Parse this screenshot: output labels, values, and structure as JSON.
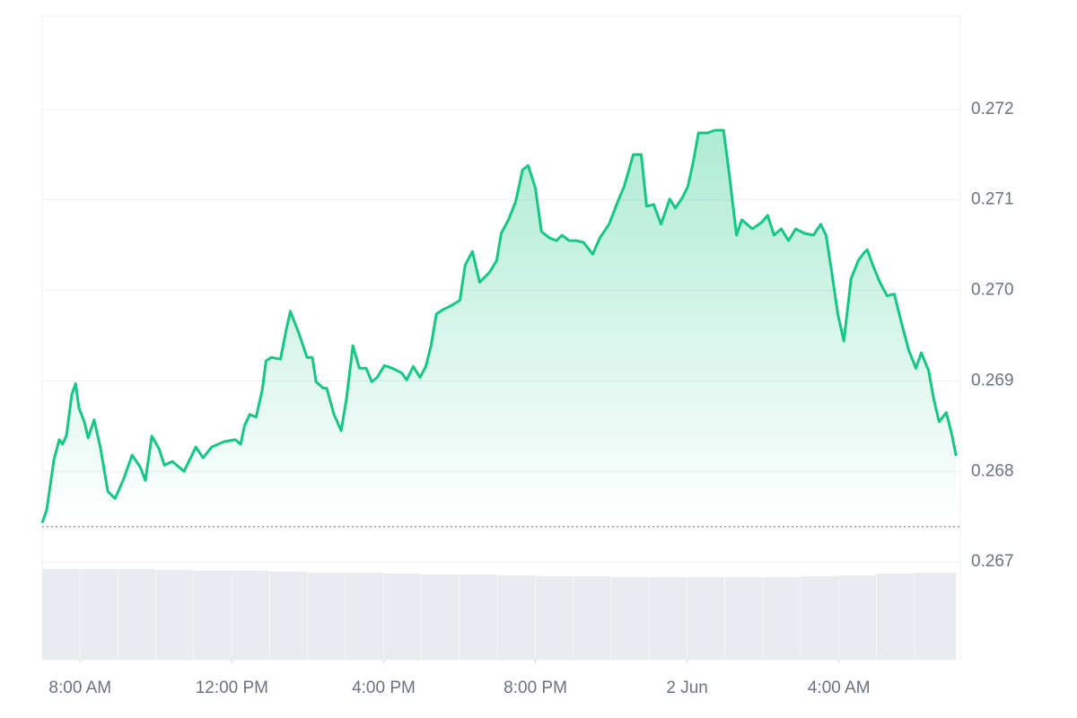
{
  "chart_data": {
    "type": "area",
    "x": [
      7.0,
      7.12,
      7.31,
      7.45,
      7.54,
      7.64,
      7.78,
      7.88,
      7.97,
      8.11,
      8.21,
      8.37,
      8.54,
      8.73,
      8.92,
      9.15,
      9.37,
      9.58,
      9.72,
      9.89,
      10.08,
      10.22,
      10.43,
      10.74,
      11.05,
      11.24,
      11.47,
      11.8,
      12.09,
      12.23,
      12.33,
      12.47,
      12.64,
      12.8,
      12.9,
      13.04,
      13.28,
      13.42,
      13.54,
      13.77,
      13.98,
      14.12,
      14.22,
      14.41,
      14.5,
      14.69,
      14.88,
      15.02,
      15.19,
      15.36,
      15.54,
      15.69,
      15.83,
      16.02,
      16.23,
      16.47,
      16.61,
      16.78,
      16.96,
      17.11,
      17.25,
      17.39,
      17.58,
      17.82,
      18.01,
      18.15,
      18.34,
      18.53,
      18.79,
      18.98,
      19.1,
      19.29,
      19.48,
      19.66,
      19.81,
      20.0,
      20.16,
      20.37,
      20.56,
      20.7,
      20.89,
      21.08,
      21.27,
      21.51,
      21.7,
      21.94,
      22.17,
      22.34,
      22.58,
      22.79,
      22.93,
      23.12,
      23.31,
      23.54,
      23.69,
      23.88,
      24.02,
      24.16,
      24.3,
      24.54,
      24.73,
      24.96,
      25.11,
      25.3,
      25.44,
      25.72,
      25.96,
      26.12,
      26.29,
      26.48,
      26.67,
      26.86,
      27.09,
      27.33,
      27.52,
      27.66,
      27.8,
      27.97,
      28.13,
      28.32,
      28.51,
      28.65,
      28.75,
      28.89,
      29.08,
      29.27,
      29.46,
      29.65,
      29.84,
      30.03,
      30.17,
      30.36,
      30.5,
      30.64,
      30.83,
      30.98,
      31.09
    ],
    "series": [
      {
        "color": "#16c784",
        "values": [
          0.26743,
          0.26758,
          0.26813,
          0.26835,
          0.2683,
          0.2684,
          0.26885,
          0.26897,
          0.2687,
          0.26855,
          0.26837,
          0.26857,
          0.26825,
          0.26778,
          0.2677,
          0.26792,
          0.26818,
          0.26805,
          0.2679,
          0.26839,
          0.26825,
          0.26807,
          0.26811,
          0.268,
          0.26827,
          0.26815,
          0.26827,
          0.26833,
          0.26835,
          0.2683,
          0.2685,
          0.26863,
          0.2686,
          0.2689,
          0.26922,
          0.26926,
          0.26924,
          0.26954,
          0.26977,
          0.26952,
          0.26926,
          0.26926,
          0.26899,
          0.26892,
          0.26892,
          0.26863,
          0.26845,
          0.2688,
          0.26939,
          0.26914,
          0.26914,
          0.26899,
          0.26904,
          0.26917,
          0.26914,
          0.26909,
          0.26901,
          0.26916,
          0.26904,
          0.26916,
          0.26939,
          0.26974,
          0.26979,
          0.26984,
          0.26989,
          0.27028,
          0.27043,
          0.27009,
          0.2702,
          0.27033,
          0.27063,
          0.27078,
          0.27098,
          0.27133,
          0.27138,
          0.27113,
          0.27065,
          0.27058,
          0.27055,
          0.27061,
          0.27055,
          0.27055,
          0.27053,
          0.2704,
          0.27058,
          0.27073,
          0.27098,
          0.27115,
          0.2715,
          0.2715,
          0.27093,
          0.27095,
          0.27073,
          0.27101,
          0.27091,
          0.27103,
          0.27115,
          0.27142,
          0.27174,
          0.27174,
          0.27177,
          0.27177,
          0.27128,
          0.27061,
          0.27078,
          0.27068,
          0.27075,
          0.27083,
          0.27061,
          0.27068,
          0.27055,
          0.27068,
          0.27063,
          0.27061,
          0.27073,
          0.27061,
          0.27023,
          0.26974,
          0.26944,
          0.27013,
          0.27033,
          0.27041,
          0.27045,
          0.27028,
          0.27009,
          0.26994,
          0.26996,
          0.26964,
          0.26934,
          0.26914,
          0.26931,
          0.26912,
          0.2688,
          0.26855,
          0.26865,
          0.2684,
          0.26817
        ]
      }
    ],
    "reference_line": 0.26739,
    "xlim": [
      7,
      31.2
    ],
    "ylim": [
      0.26592,
      0.27303
    ],
    "yticks": [
      0.267,
      0.268,
      0.269,
      0.27,
      0.271,
      0.272
    ],
    "ytick_labels": [
      "0.267",
      "0.268",
      "0.269",
      "0.270",
      "0.271",
      "0.272"
    ],
    "xticks": [
      {
        "value": 8,
        "label": "8:00 AM"
      },
      {
        "value": 12,
        "label": "12:00 PM"
      },
      {
        "value": 16,
        "label": "4:00 PM"
      },
      {
        "value": 20,
        "label": "8:00 PM"
      },
      {
        "value": 24,
        "label": "2 Jun"
      },
      {
        "value": 28,
        "label": "4:00 AM"
      }
    ],
    "grid": true,
    "volume": {
      "color": "#e8ecf0",
      "ylim": [
        0,
        102
      ],
      "x": [
        7,
        8,
        9,
        10,
        11,
        12,
        13,
        14,
        15,
        16,
        17,
        18,
        19,
        20,
        21,
        22,
        23,
        24,
        25,
        26,
        27,
        28,
        29,
        30
      ],
      "values": [
        101,
        101,
        101,
        100,
        99,
        99,
        98,
        97,
        97,
        96,
        95,
        95,
        94,
        93,
        93,
        92,
        92,
        92,
        92,
        92,
        93,
        94,
        96,
        97
      ]
    }
  }
}
